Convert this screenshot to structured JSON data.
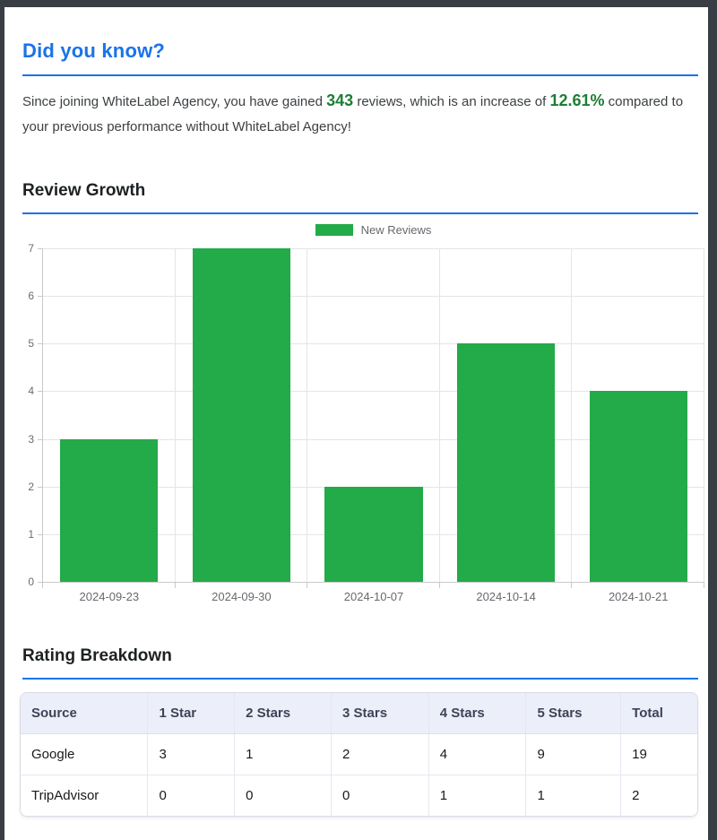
{
  "colors": {
    "accent_blue": "#1a73e8",
    "frame_dark": "#393e44",
    "green_text": "#1e7e34",
    "bar_green": "#23aa49",
    "table_header_bg": "#eceefa"
  },
  "did_you_know": {
    "title": "Did you know?",
    "intro": {
      "text_before": "Since joining WhiteLabel Agency, you have gained ",
      "reviews_gained": "343",
      "text_middle": " reviews, which is an increase of ",
      "increase_percent": "12.61%",
      "text_after": " compared to your previous performance without WhiteLabel Agency!"
    }
  },
  "review_growth": {
    "title": "Review Growth"
  },
  "chart_data": {
    "type": "bar",
    "title": "",
    "categories": [
      "2024-09-23",
      "2024-09-30",
      "2024-10-07",
      "2024-10-14",
      "2024-10-21"
    ],
    "series": [
      {
        "name": "New Reviews",
        "values": [
          3,
          7,
          2,
          5,
          4
        ],
        "color": "#23aa49"
      }
    ],
    "xlabel": "",
    "ylabel": "",
    "ylim": [
      0,
      7
    ],
    "ytick_step": 1,
    "grid": true,
    "legend_position": "top-center"
  },
  "rating_breakdown": {
    "title": "Rating Breakdown",
    "table": {
      "headers": [
        "Source",
        "1 Star",
        "2 Stars",
        "3 Stars",
        "4 Stars",
        "5 Stars",
        "Total"
      ],
      "rows": [
        [
          "Google",
          "3",
          "1",
          "2",
          "4",
          "9",
          "19"
        ],
        [
          "TripAdvisor",
          "0",
          "0",
          "0",
          "1",
          "1",
          "2"
        ]
      ]
    }
  }
}
